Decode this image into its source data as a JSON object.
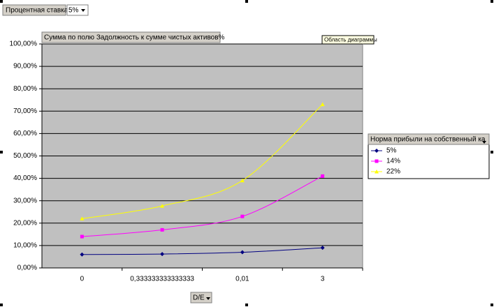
{
  "chart_data": {
    "type": "line",
    "page_field": {
      "label": "Процентная ставка",
      "value": "5%"
    },
    "title": "Сумма по полю Задолжность к сумме чистых активов%",
    "tooltip": "Область диаграммы",
    "legend_title": "Норма прибыли на собственный ка",
    "x_label": "D/E",
    "categories": [
      "0",
      "0,333333333333333",
      "0,01",
      "3"
    ],
    "series": [
      {
        "name": "5%",
        "color": "#000080",
        "marker": "diamond",
        "values": [
          6,
          6.2,
          7,
          9
        ]
      },
      {
        "name": "14%",
        "color": "#ff00ff",
        "marker": "square",
        "values": [
          14,
          17,
          23,
          41
        ]
      },
      {
        "name": "22%",
        "color": "#ffff00",
        "marker": "triangle",
        "values": [
          22,
          27.7,
          39,
          73
        ]
      }
    ],
    "ylim": [
      0,
      100
    ],
    "yticks": [
      {
        "value": 0,
        "label": "0,00%"
      },
      {
        "value": 10,
        "label": "10,00%"
      },
      {
        "value": 20,
        "label": "20,00%"
      },
      {
        "value": 30,
        "label": "30,00%"
      },
      {
        "value": 40,
        "label": "40,00%"
      },
      {
        "value": 50,
        "label": "50,00%"
      },
      {
        "value": 60,
        "label": "60,00%"
      },
      {
        "value": 70,
        "label": "70,00%"
      },
      {
        "value": 80,
        "label": "80,00%"
      },
      {
        "value": 90,
        "label": "90,00%"
      },
      {
        "value": 100,
        "label": "100,00%"
      }
    ],
    "grid": true
  }
}
